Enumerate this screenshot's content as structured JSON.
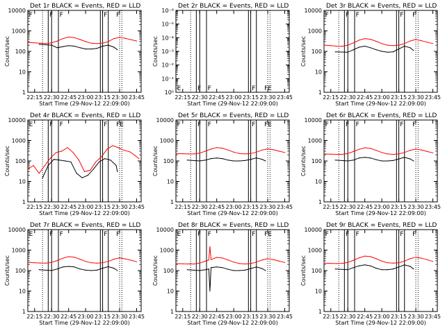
{
  "figure": {
    "type": "multi-panel line plot",
    "xlabel": "Start Time (29-Nov-12 22:09:00)",
    "ylabel": "Counts/sec",
    "x_ticks": [
      "22:15",
      "22:30",
      "22:45",
      "23:00",
      "23:15",
      "23:30",
      "23:45"
    ],
    "colors": {
      "events": "#000000",
      "lld": "#ff0000"
    }
  },
  "chart_data": [
    {
      "type": "line",
      "title": "Det 1r BLACK = Events, RED = LLD",
      "ylog": true,
      "yticks": [
        "1",
        "10",
        "100",
        "1000",
        "10000"
      ],
      "flags": [
        "F",
        "F",
        "F",
        "F",
        "F"
      ],
      "xlim": [
        "22:09",
        "23:49"
      ],
      "series": [
        {
          "name": "Events",
          "color": "#000000",
          "x": [
            "22:19",
            "22:30",
            "22:35",
            "22:40",
            "22:45",
            "22:50",
            "22:55",
            "23:00",
            "23:05",
            "23:10",
            "23:15",
            "23:20",
            "23:25",
            "23:28"
          ],
          "y": [
            220,
            200,
            150,
            170,
            190,
            180,
            150,
            130,
            130,
            140,
            180,
            200,
            160,
            120
          ]
        },
        {
          "name": "LLD",
          "color": "#ff0000",
          "x": [
            "22:09",
            "22:15",
            "22:20",
            "22:25",
            "22:30",
            "22:35",
            "22:40",
            "22:45",
            "22:50",
            "22:55",
            "23:00",
            "23:05",
            "23:10",
            "23:15",
            "23:20",
            "23:25",
            "23:30",
            "23:35",
            "23:40",
            "23:45"
          ],
          "y": [
            270,
            260,
            250,
            240,
            260,
            320,
            420,
            500,
            470,
            380,
            300,
            250,
            240,
            250,
            300,
            420,
            480,
            430,
            370,
            320
          ]
        }
      ]
    },
    {
      "type": "line",
      "title": "Det 2r BLACK = Events, RED = LLD",
      "ylog": true,
      "yticks": [
        "10⁰",
        "10⁻¹",
        "10⁻²",
        "10⁻³",
        "10⁻⁴",
        "10⁻⁵",
        "10⁻⁶"
      ],
      "flags": [
        "E",
        "F",
        "F",
        "F",
        "FE"
      ],
      "xlim": [
        "22:09",
        "23:49"
      ],
      "series": []
    },
    {
      "type": "line",
      "title": "Det 3r BLACK = Events, RED = LLD",
      "ylog": true,
      "yticks": [
        "1",
        "10",
        "100",
        "1000",
        "10000"
      ],
      "flags": [
        "F",
        "F",
        "F",
        "F",
        "F"
      ],
      "xlim": [
        "22:09",
        "23:49"
      ],
      "series": [
        {
          "name": "Events",
          "color": "#000000",
          "x": [
            "22:19",
            "22:30",
            "22:35",
            "22:40",
            "22:45",
            "22:50",
            "22:55",
            "23:00",
            "23:05",
            "23:10",
            "23:15",
            "23:20",
            "23:25",
            "23:28"
          ],
          "y": [
            95,
            90,
            120,
            160,
            180,
            150,
            120,
            100,
            90,
            95,
            130,
            180,
            150,
            110
          ]
        },
        {
          "name": "LLD",
          "color": "#ff0000",
          "x": [
            "22:09",
            "22:15",
            "22:20",
            "22:25",
            "22:30",
            "22:35",
            "22:40",
            "22:45",
            "22:50",
            "22:55",
            "23:00",
            "23:05",
            "23:10",
            "23:15",
            "23:20",
            "23:25",
            "23:30",
            "23:35",
            "23:40",
            "23:45"
          ],
          "y": [
            200,
            190,
            180,
            175,
            200,
            260,
            350,
            420,
            390,
            310,
            240,
            200,
            190,
            200,
            240,
            320,
            380,
            330,
            280,
            240
          ]
        }
      ]
    },
    {
      "type": "line",
      "title": "Det 4r BLACK = Events, RED = LLD",
      "ylog": true,
      "yticks": [
        "1",
        "10",
        "100",
        "1000",
        "10000"
      ],
      "flags": [
        "E",
        "F",
        "F",
        "F",
        "FE"
      ],
      "xlim": [
        "22:09",
        "23:49"
      ],
      "series": [
        {
          "name": "Events",
          "color": "#000000",
          "x": [
            "22:22",
            "22:27",
            "22:32",
            "22:37",
            "22:42",
            "22:47",
            "22:52",
            "22:57",
            "23:02",
            "23:07",
            "23:12",
            "23:17",
            "23:22",
            "23:27",
            "23:28"
          ],
          "y": [
            15,
            60,
            120,
            110,
            100,
            90,
            25,
            15,
            20,
            40,
            90,
            130,
            110,
            60,
            30
          ]
        },
        {
          "name": "LLD",
          "color": "#ff0000",
          "x": [
            "22:09",
            "22:14",
            "22:19",
            "22:24",
            "22:29",
            "22:34",
            "22:39",
            "22:44",
            "22:49",
            "22:54",
            "22:59",
            "23:04",
            "23:09",
            "23:14",
            "23:19",
            "23:24",
            "23:29",
            "23:34",
            "23:39",
            "23:44",
            "23:47"
          ],
          "y": [
            40,
            60,
            25,
            60,
            140,
            260,
            300,
            450,
            260,
            110,
            30,
            35,
            90,
            160,
            380,
            560,
            440,
            330,
            280,
            180,
            130
          ]
        }
      ]
    },
    {
      "type": "line",
      "title": "Det 5r BLACK = Events, RED = LLD",
      "ylog": true,
      "yticks": [
        "1",
        "10",
        "100",
        "1000",
        "10000"
      ],
      "flags": [
        "F",
        "F",
        "F",
        "F",
        "FE"
      ],
      "xlim": [
        "22:09",
        "23:49"
      ],
      "series": [
        {
          "name": "Events",
          "color": "#000000",
          "x": [
            "22:19",
            "22:30",
            "22:35",
            "22:40",
            "22:45",
            "22:50",
            "22:55",
            "23:00",
            "23:05",
            "23:10",
            "23:15",
            "23:20",
            "23:25",
            "23:28"
          ],
          "y": [
            110,
            100,
            110,
            130,
            140,
            130,
            110,
            100,
            100,
            105,
            120,
            140,
            120,
            100
          ]
        },
        {
          "name": "LLD",
          "color": "#ff0000",
          "x": [
            "22:09",
            "22:15",
            "22:20",
            "22:25",
            "22:30",
            "22:35",
            "22:40",
            "22:45",
            "22:50",
            "22:55",
            "23:00",
            "23:05",
            "23:10",
            "23:15",
            "23:20",
            "23:25",
            "23:30",
            "23:35",
            "23:40",
            "23:45"
          ],
          "y": [
            230,
            225,
            220,
            220,
            240,
            300,
            380,
            450,
            420,
            340,
            270,
            230,
            220,
            230,
            270,
            340,
            390,
            350,
            300,
            260
          ]
        }
      ]
    },
    {
      "type": "line",
      "title": "Det 6r BLACK = Events, RED = LLD",
      "ylog": true,
      "yticks": [
        "1",
        "10",
        "100",
        "1000",
        "10000"
      ],
      "flags": [
        "F",
        "F",
        "F",
        "F",
        "F"
      ],
      "xlim": [
        "22:09",
        "23:49"
      ],
      "series": [
        {
          "name": "Events",
          "color": "#000000",
          "x": [
            "22:19",
            "22:30",
            "22:35",
            "22:40",
            "22:45",
            "22:50",
            "22:55",
            "23:00",
            "23:05",
            "23:10",
            "23:15",
            "23:20",
            "23:25",
            "23:28"
          ],
          "y": [
            110,
            100,
            110,
            140,
            150,
            140,
            115,
            100,
            100,
            105,
            125,
            150,
            125,
            100
          ]
        },
        {
          "name": "LLD",
          "color": "#ff0000",
          "x": [
            "22:09",
            "22:15",
            "22:20",
            "22:25",
            "22:30",
            "22:35",
            "22:40",
            "22:45",
            "22:50",
            "22:55",
            "23:00",
            "23:05",
            "23:10",
            "23:15",
            "23:20",
            "23:25",
            "23:30",
            "23:35",
            "23:40",
            "23:45"
          ],
          "y": [
            220,
            215,
            210,
            210,
            230,
            290,
            370,
            440,
            410,
            330,
            260,
            220,
            210,
            220,
            260,
            330,
            380,
            340,
            290,
            250
          ]
        }
      ]
    },
    {
      "type": "line",
      "title": "Det 7r BLACK = Events, RED = LLD",
      "ylog": true,
      "yticks": [
        "1",
        "10",
        "100",
        "1000",
        "10000"
      ],
      "flags": [
        "E",
        "F",
        "F",
        "F",
        "F"
      ],
      "xlim": [
        "22:09",
        "23:49"
      ],
      "series": [
        {
          "name": "Events",
          "color": "#000000",
          "x": [
            "22:19",
            "22:30",
            "22:35",
            "22:40",
            "22:45",
            "22:50",
            "22:55",
            "23:00",
            "23:05",
            "23:10",
            "23:15",
            "23:20",
            "23:25",
            "23:28"
          ],
          "y": [
            110,
            100,
            120,
            150,
            160,
            150,
            120,
            105,
            100,
            105,
            130,
            155,
            130,
            100
          ]
        },
        {
          "name": "LLD",
          "color": "#ff0000",
          "x": [
            "22:09",
            "22:15",
            "22:20",
            "22:25",
            "22:30",
            "22:35",
            "22:40",
            "22:45",
            "22:50",
            "22:55",
            "23:00",
            "23:05",
            "23:10",
            "23:15",
            "23:20",
            "23:25",
            "23:30",
            "23:35",
            "23:40",
            "23:45"
          ],
          "y": [
            250,
            240,
            235,
            230,
            250,
            310,
            400,
            480,
            450,
            360,
            280,
            240,
            230,
            240,
            280,
            360,
            420,
            370,
            320,
            270
          ]
        }
      ]
    },
    {
      "type": "line",
      "title": "Det 8r BLACK = Events, RED = LLD",
      "ylog": true,
      "yticks": [
        "1",
        "10",
        "100",
        "1000",
        "10000"
      ],
      "flags": [
        "E",
        "F",
        "F",
        "F",
        "FE"
      ],
      "xlim": [
        "22:09",
        "23:49"
      ],
      "series": [
        {
          "name": "Events",
          "color": "#000000",
          "x": [
            "22:19",
            "22:30",
            "22:35",
            "22:38",
            "22:39",
            "22:40",
            "22:45",
            "22:50",
            "22:55",
            "23:00",
            "23:05",
            "23:10",
            "23:15",
            "23:20",
            "23:25",
            "23:28"
          ],
          "y": [
            110,
            100,
            110,
            120,
            10,
            140,
            150,
            140,
            115,
            100,
            100,
            105,
            125,
            150,
            125,
            100
          ]
        },
        {
          "name": "LLD",
          "color": "#ff0000",
          "x": [
            "22:09",
            "22:15",
            "22:20",
            "22:25",
            "22:30",
            "22:35",
            "22:38",
            "22:39",
            "22:40",
            "22:45",
            "22:50",
            "22:55",
            "23:00",
            "23:05",
            "23:10",
            "23:15",
            "23:20",
            "23:25",
            "23:30",
            "23:35",
            "23:40",
            "23:45"
          ],
          "y": [
            220,
            215,
            210,
            210,
            230,
            290,
            330,
            1500,
            340,
            440,
            410,
            330,
            260,
            220,
            210,
            220,
            260,
            330,
            380,
            340,
            290,
            250
          ]
        }
      ]
    },
    {
      "type": "line",
      "title": "Det 9r BLACK = Events, RED = LLD",
      "ylog": true,
      "yticks": [
        "1",
        "10",
        "100",
        "1000",
        "10000"
      ],
      "flags": [
        "F",
        "F",
        "F",
        "F",
        "F"
      ],
      "xlim": [
        "22:09",
        "23:49"
      ],
      "series": [
        {
          "name": "Events",
          "color": "#000000",
          "x": [
            "22:19",
            "22:30",
            "22:35",
            "22:40",
            "22:45",
            "22:50",
            "22:55",
            "23:00",
            "23:05",
            "23:10",
            "23:15",
            "23:20",
            "23:25",
            "23:28"
          ],
          "y": [
            120,
            110,
            140,
            170,
            190,
            170,
            130,
            110,
            110,
            120,
            150,
            190,
            160,
            120
          ]
        },
        {
          "name": "LLD",
          "color": "#ff0000",
          "x": [
            "22:09",
            "22:15",
            "22:20",
            "22:25",
            "22:30",
            "22:35",
            "22:40",
            "22:45",
            "22:50",
            "22:55",
            "23:00",
            "23:05",
            "23:10",
            "23:15",
            "23:20",
            "23:25",
            "23:30",
            "23:35",
            "23:40",
            "23:45"
          ],
          "y": [
            230,
            225,
            220,
            225,
            250,
            320,
            420,
            510,
            480,
            380,
            290,
            240,
            230,
            240,
            290,
            380,
            450,
            400,
            340,
            280
          ]
        }
      ]
    }
  ],
  "vlines_solid": [
    "22:27",
    "22:30",
    "22:36",
    "23:13",
    "23:15",
    "23:20"
  ],
  "vlines_dotted": [
    "22:22",
    "23:30",
    "23:32"
  ]
}
